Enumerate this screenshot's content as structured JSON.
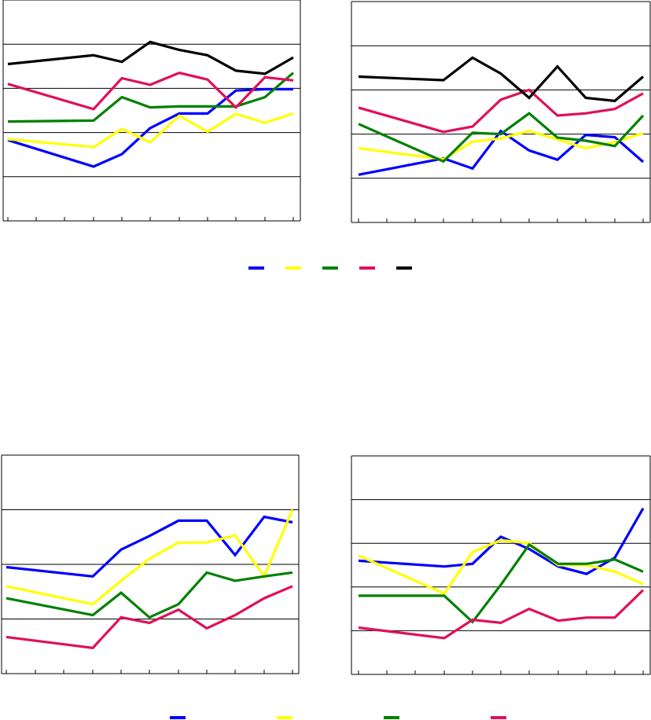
{
  "colors": {
    "blue": "#0000FF",
    "yellow": "#FFFF00",
    "green": "#008000",
    "red": "#E0105A",
    "black": "#000000",
    "grid": "#000000",
    "background": "#FFFFFF"
  },
  "top_legend": {
    "swatches": [
      {
        "color_key": "blue",
        "label": ""
      },
      {
        "color_key": "yellow",
        "label": ""
      },
      {
        "color_key": "green",
        "label": ""
      },
      {
        "color_key": "red",
        "label": ""
      },
      {
        "color_key": "black",
        "label": ""
      }
    ]
  },
  "bottom_legend": {
    "swatches": [
      {
        "color_key": "blue",
        "label": ""
      },
      {
        "color_key": "yellow",
        "label": ""
      },
      {
        "color_key": "green",
        "label": ""
      },
      {
        "color_key": "red",
        "label": ""
      }
    ]
  },
  "chart_data": [
    {
      "type": "line",
      "title": "",
      "xlabel": "",
      "ylabel": "",
      "grid": "horizontal",
      "tick_labels_visible": false,
      "x": [
        1,
        2,
        3,
        4,
        5,
        6,
        7,
        8,
        9,
        10,
        11
      ],
      "ylim": [
        0,
        5
      ],
      "series": [
        {
          "color_key": "blue",
          "values": [
            1.83,
            null,
            null,
            1.23,
            1.51,
            2.1,
            2.43,
            2.43,
            2.95,
            2.98,
            2.98
          ]
        },
        {
          "color_key": "yellow",
          "values": [
            1.85,
            null,
            null,
            1.67,
            2.08,
            1.78,
            2.38,
            2.02,
            2.42,
            2.22,
            2.43
          ]
        },
        {
          "color_key": "green",
          "values": [
            2.25,
            null,
            null,
            2.27,
            2.8,
            2.57,
            2.59,
            2.59,
            2.59,
            2.8,
            3.35
          ]
        },
        {
          "color_key": "red",
          "values": [
            3.1,
            null,
            null,
            2.53,
            3.23,
            3.08,
            3.35,
            3.2,
            2.57,
            3.25,
            3.18
          ]
        },
        {
          "color_key": "black",
          "values": [
            3.55,
            null,
            null,
            3.75,
            3.6,
            4.05,
            3.87,
            3.75,
            3.4,
            3.33,
            3.7
          ]
        }
      ]
    },
    {
      "type": "line",
      "title": "",
      "xlabel": "",
      "ylabel": "",
      "grid": "horizontal",
      "tick_labels_visible": false,
      "x": [
        1,
        2,
        3,
        4,
        5,
        6,
        7,
        8,
        9,
        10,
        11
      ],
      "ylim": [
        0,
        5
      ],
      "series": [
        {
          "color_key": "blue",
          "values": [
            1.08,
            null,
            null,
            1.45,
            1.22,
            2.07,
            1.63,
            1.42,
            1.98,
            1.93,
            1.37
          ]
        },
        {
          "color_key": "yellow",
          "values": [
            1.68,
            null,
            null,
            1.43,
            1.83,
            1.9,
            2.07,
            1.88,
            1.68,
            1.82,
            2.02
          ]
        },
        {
          "color_key": "green",
          "values": [
            2.23,
            null,
            null,
            1.38,
            2.03,
            2.0,
            2.47,
            1.92,
            1.85,
            1.73,
            2.42
          ]
        },
        {
          "color_key": "red",
          "values": [
            2.6,
            null,
            null,
            2.05,
            2.17,
            2.78,
            3.0,
            2.42,
            2.47,
            2.57,
            2.92
          ]
        },
        {
          "color_key": "black",
          "values": [
            3.3,
            null,
            null,
            3.22,
            3.73,
            3.37,
            2.82,
            3.53,
            2.82,
            2.75,
            3.3
          ]
        }
      ]
    },
    {
      "type": "line",
      "title": "",
      "xlabel": "",
      "ylabel": "",
      "grid": "horizontal",
      "tick_labels_visible": false,
      "x": [
        1,
        2,
        3,
        4,
        5,
        6,
        7,
        8,
        9,
        10,
        11
      ],
      "ylim": [
        0,
        4
      ],
      "series": [
        {
          "color_key": "blue",
          "values": [
            1.95,
            null,
            null,
            1.78,
            2.27,
            2.52,
            2.8,
            2.8,
            2.17,
            2.87,
            2.77
          ]
        },
        {
          "color_key": "yellow",
          "values": [
            1.6,
            null,
            null,
            1.27,
            1.7,
            2.1,
            2.4,
            2.4,
            2.53,
            1.78,
            3.0
          ]
        },
        {
          "color_key": "green",
          "values": [
            1.38,
            null,
            null,
            1.07,
            1.48,
            1.03,
            1.27,
            1.85,
            1.7,
            1.78,
            1.85
          ]
        },
        {
          "color_key": "red",
          "values": [
            0.67,
            null,
            null,
            0.47,
            1.03,
            0.93,
            1.17,
            0.83,
            1.07,
            1.38,
            1.6
          ]
        }
      ]
    },
    {
      "type": "line",
      "title": "",
      "xlabel": "",
      "ylabel": "",
      "grid": "horizontal",
      "tick_labels_visible": false,
      "x": [
        1,
        2,
        3,
        4,
        5,
        6,
        7,
        8,
        9,
        10,
        11
      ],
      "ylim": [
        0,
        5
      ],
      "series": [
        {
          "color_key": "blue",
          "values": [
            2.6,
            null,
            null,
            2.47,
            2.53,
            3.15,
            2.87,
            2.47,
            2.3,
            2.67,
            3.8
          ]
        },
        {
          "color_key": "yellow",
          "values": [
            2.72,
            null,
            null,
            1.85,
            2.8,
            3.07,
            3.0,
            2.5,
            2.5,
            2.35,
            2.07
          ]
        },
        {
          "color_key": "green",
          "values": [
            1.8,
            null,
            null,
            1.8,
            1.2,
            2.05,
            2.97,
            2.53,
            2.53,
            2.63,
            2.35
          ]
        },
        {
          "color_key": "red",
          "values": [
            1.07,
            null,
            null,
            0.83,
            1.25,
            1.18,
            1.5,
            1.23,
            1.3,
            1.3,
            1.93
          ]
        }
      ]
    }
  ]
}
